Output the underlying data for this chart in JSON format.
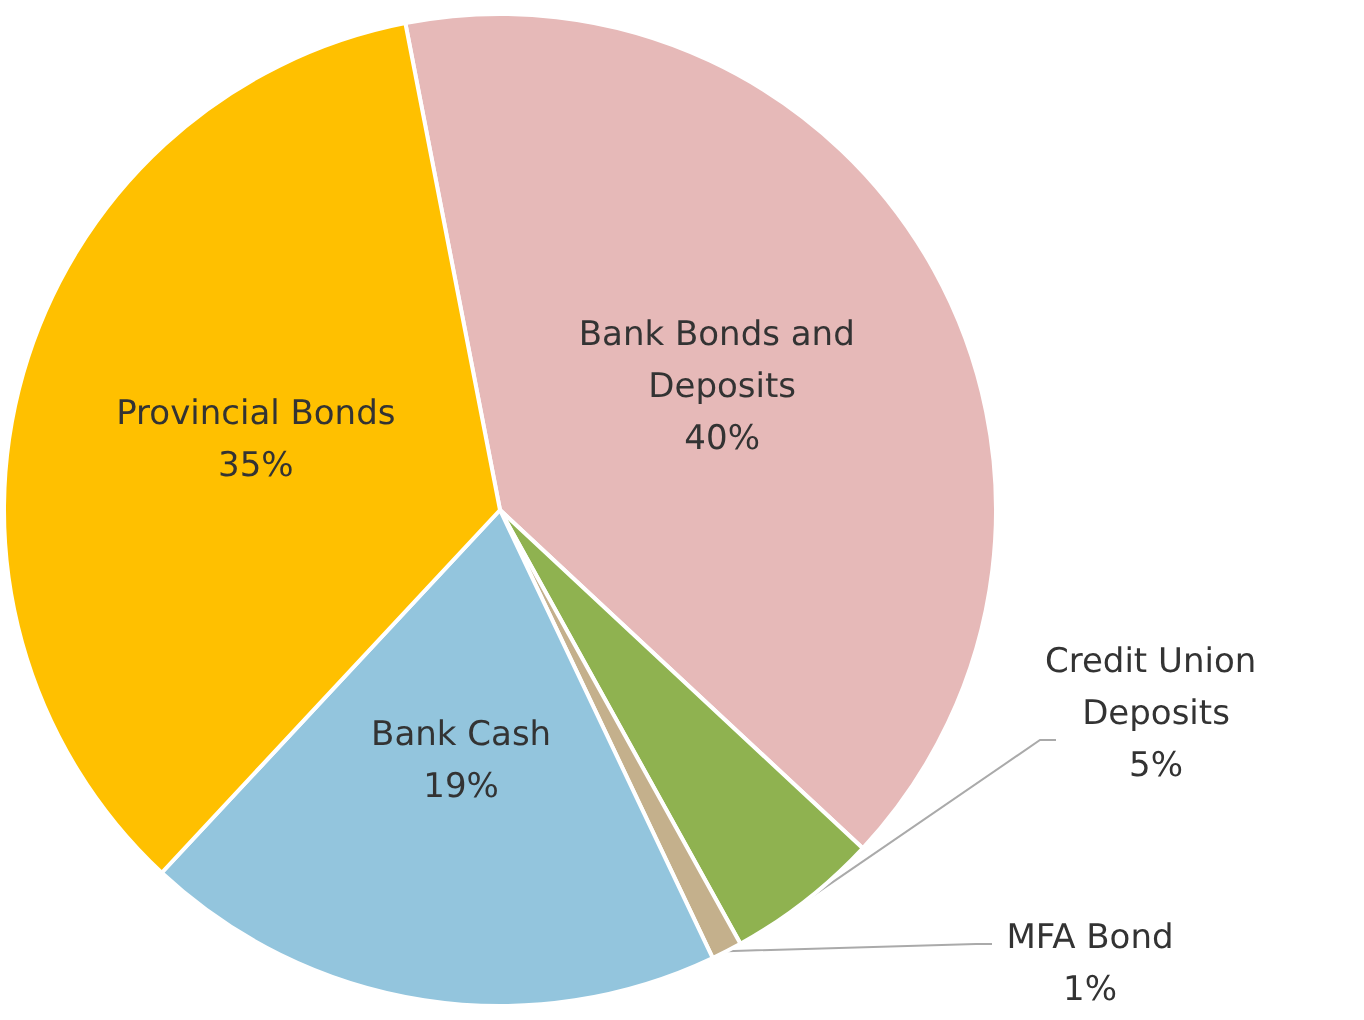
{
  "chart_data": {
    "type": "pie",
    "categories": [
      "Bank Bonds and Deposits",
      "Credit Union Deposits",
      "MFA Bond",
      "Bank Cash",
      "Provincial Bonds"
    ],
    "values": [
      40,
      5,
      1,
      19,
      35
    ],
    "value_labels": [
      "40%",
      "5%",
      "1%",
      "19%",
      "35%"
    ],
    "colors": [
      "#e6b9b8",
      "#8fb250",
      "#c4b08c",
      "#93c5dd",
      "#ffc000"
    ],
    "legend": false
  }
}
